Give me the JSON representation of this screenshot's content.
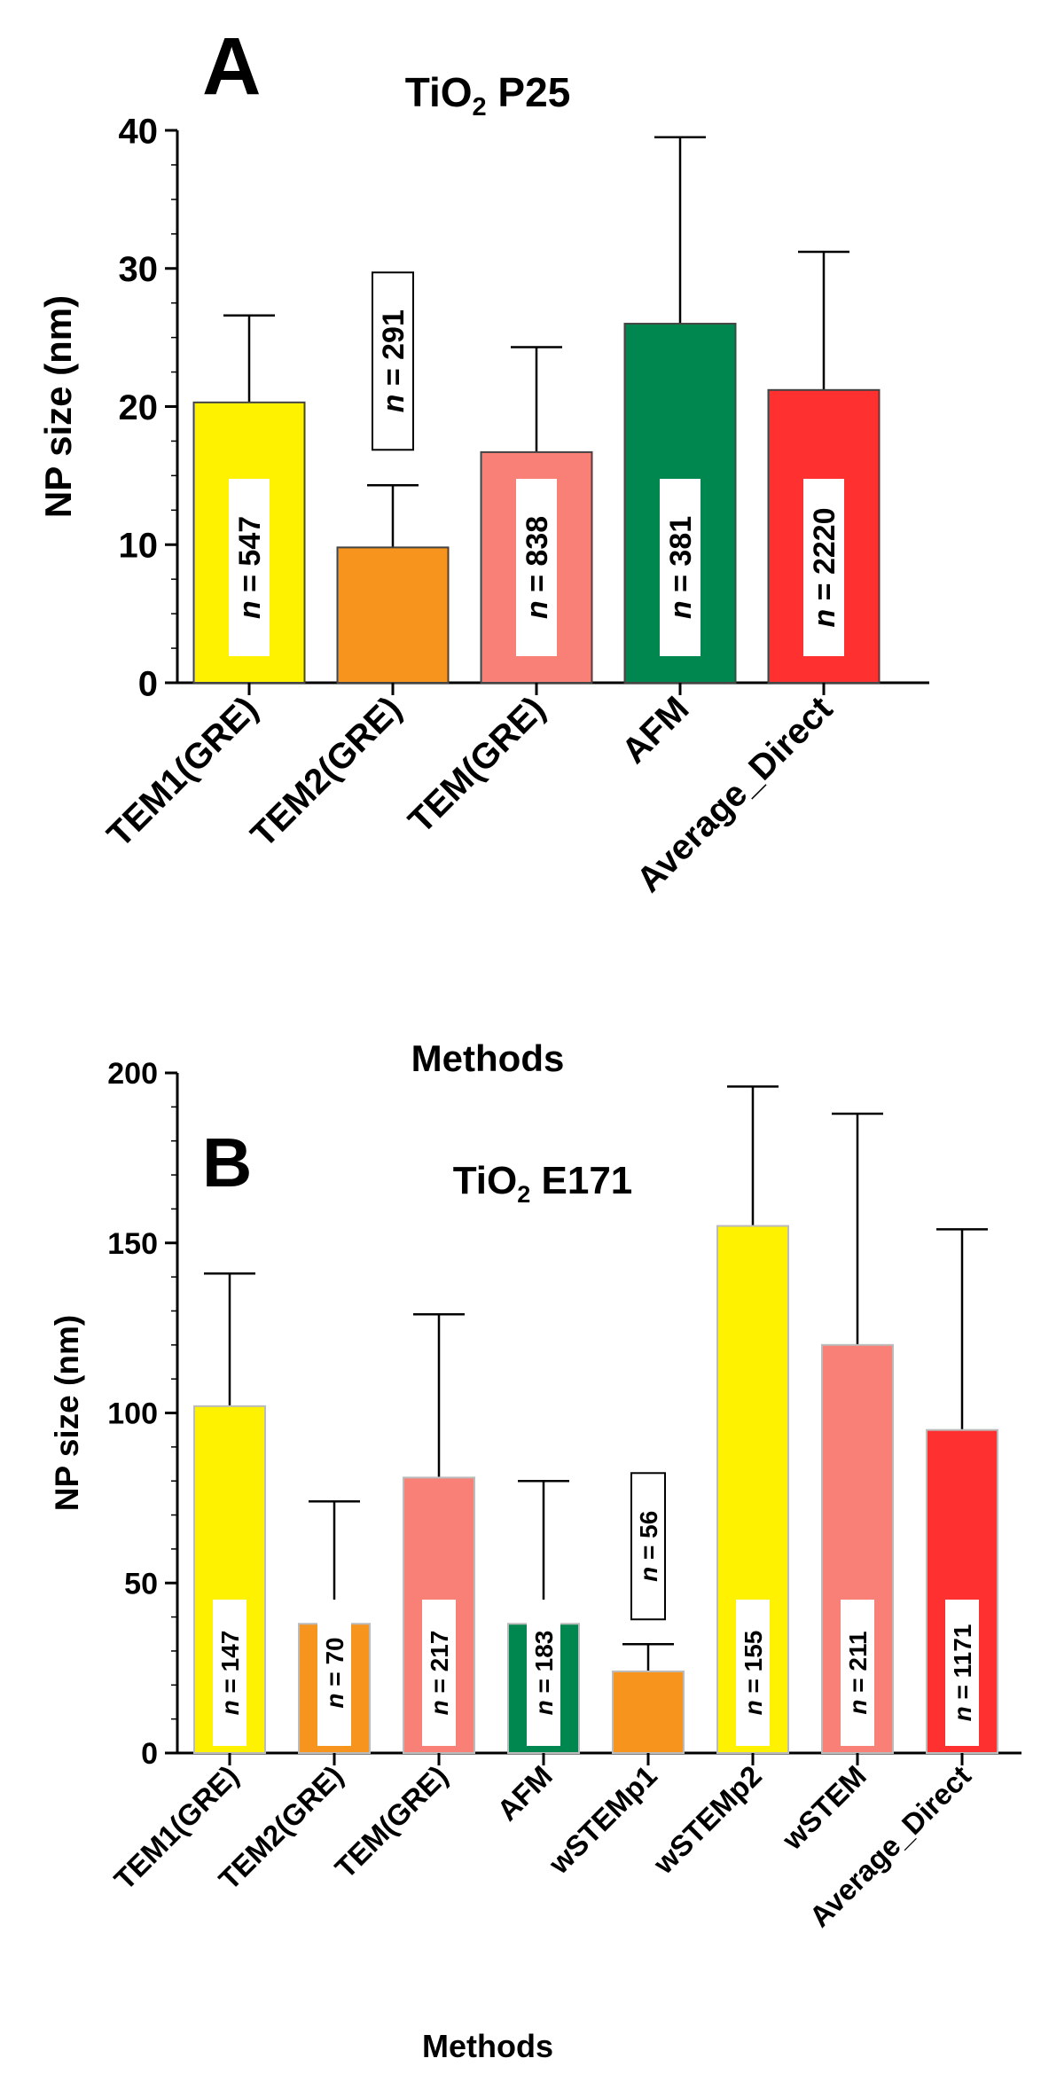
{
  "chart_data": [
    {
      "panel_label": "A",
      "type": "bar",
      "title_main": "TiO",
      "title_sub": "2",
      "title_rest": " P25",
      "xlabel": "Methods",
      "ylabel": "NP size (nm)",
      "ylim": [
        0,
        40
      ],
      "yticks": [
        "0",
        "10",
        "20",
        "30",
        "40"
      ],
      "categories": [
        "TEM1(GRE)",
        "TEM2(GRE)",
        "TEM(GRE)",
        "AFM",
        "Average_Direct"
      ],
      "values": [
        20.3,
        9.8,
        16.7,
        26.0,
        21.2
      ],
      "error_upper": [
        26.6,
        14.3,
        24.3,
        39.5,
        31.2
      ],
      "colors": [
        "#fff200",
        "#f7941d",
        "#f98077",
        "#00874f",
        "#ff3030"
      ],
      "n_prefix": "n",
      "n_labels": [
        "= 547",
        "= 291",
        "= 838",
        "= 381",
        "= 2220"
      ],
      "n_label_outside": [
        false,
        true,
        false,
        false,
        false
      ]
    },
    {
      "panel_label": "B",
      "type": "bar",
      "title_main": "TiO",
      "title_sub": "2",
      "title_rest": " E171",
      "xlabel": "Methods",
      "ylabel": "NP size (nm)",
      "ylim": [
        0,
        200
      ],
      "yticks": [
        "0",
        "50",
        "100",
        "150",
        "200"
      ],
      "categories": [
        "TEM1(GRE)",
        "TEM2(GRE)",
        "TEM(GRE)",
        "AFM",
        "wSTEMp1",
        "wSTEMp2",
        "wSTEM",
        "Average_Direct"
      ],
      "values": [
        102,
        38,
        81,
        38,
        24,
        155,
        120,
        95
      ],
      "error_upper": [
        141,
        74,
        129,
        80,
        32,
        196,
        188,
        154
      ],
      "colors": [
        "#fff200",
        "#f7941d",
        "#f98077",
        "#00874f",
        "#f7941d",
        "#fff200",
        "#f98077",
        "#ff3030"
      ],
      "n_prefix": "n",
      "n_labels": [
        "= 147",
        "= 70",
        "= 217",
        "= 183",
        "= 56",
        "= 155",
        "= 211",
        "= 1171"
      ],
      "n_label_outside": [
        false,
        false,
        false,
        false,
        true,
        false,
        false,
        false
      ]
    }
  ]
}
